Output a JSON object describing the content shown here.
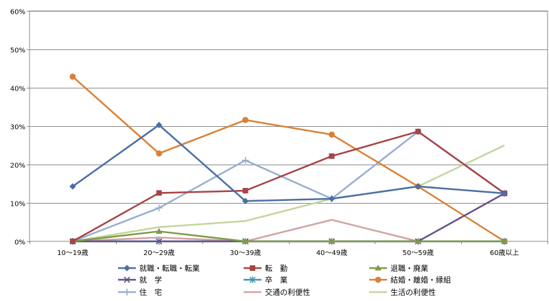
{
  "chart_data": {
    "type": "line",
    "categories": [
      "10～19歳",
      "20～29歳",
      "30～39歳",
      "40～49歳",
      "50～59歳",
      "60歳以上"
    ],
    "ylim": [
      0,
      60
    ],
    "yticks": [
      0,
      10,
      20,
      30,
      40,
      50,
      60
    ],
    "ytick_labels": [
      "0%",
      "10%",
      "20%",
      "30%",
      "40%",
      "50%",
      "60%"
    ],
    "grid": true,
    "legend_position": "bottom",
    "series": [
      {
        "name": "就職・転職・転業",
        "color": "#4A6FA5",
        "marker": "diamond",
        "values": [
          14.3,
          30.3,
          10.5,
          11.1,
          14.3,
          12.5
        ]
      },
      {
        "name": "転　勤",
        "color": "#A64446",
        "marker": "square",
        "values": [
          0,
          12.6,
          13.2,
          22.2,
          28.6,
          12.5
        ]
      },
      {
        "name": "退職・廃業",
        "color": "#7F9A48",
        "marker": "triangle",
        "values": [
          0,
          2.6,
          0,
          0,
          0,
          0
        ]
      },
      {
        "name": "就　学",
        "color": "#69508A",
        "marker": "x",
        "values": [
          0,
          0,
          0,
          0,
          0,
          12.5
        ]
      },
      {
        "name": "卒　業",
        "color": "#3F97AD",
        "marker": "star",
        "values": [
          0,
          0,
          0,
          0,
          0,
          0
        ]
      },
      {
        "name": "結婚・離婚・縁組",
        "color": "#DA8137",
        "marker": "circle",
        "values": [
          42.9,
          22.9,
          31.6,
          27.8,
          14.3,
          0
        ]
      },
      {
        "name": "住　宅",
        "color": "#97AED1",
        "marker": "plus",
        "values": [
          0,
          8.7,
          21.1,
          11.1,
          28.6,
          12.5
        ]
      },
      {
        "name": "交通の利便性",
        "color": "#D3A3A4",
        "marker": "none",
        "values": [
          0,
          1.0,
          0,
          5.6,
          0,
          0
        ]
      },
      {
        "name": "生活の利便性",
        "color": "#C3D69B",
        "marker": "none",
        "values": [
          0,
          3.7,
          5.3,
          11.1,
          14.3,
          25.0
        ]
      }
    ]
  }
}
